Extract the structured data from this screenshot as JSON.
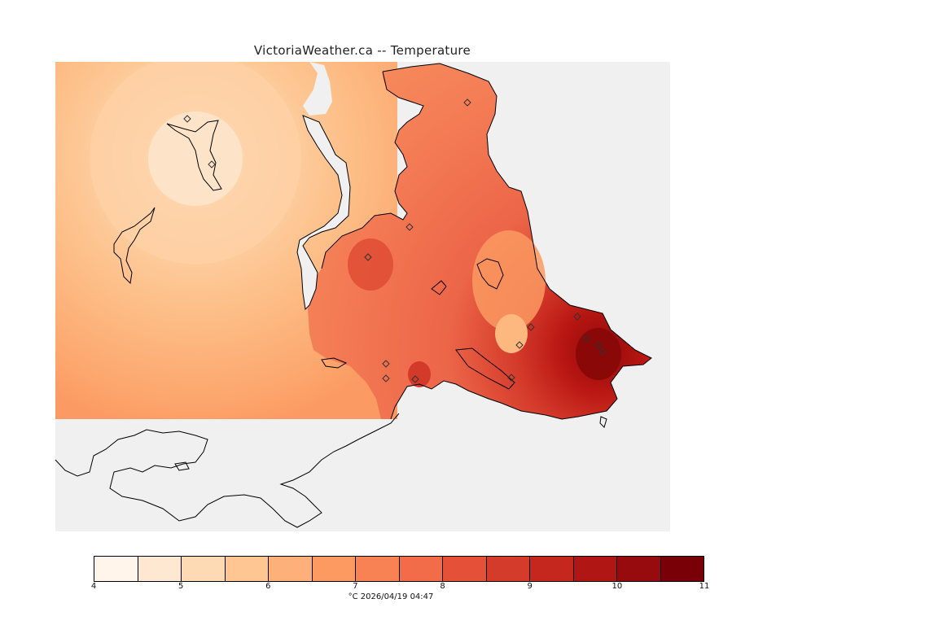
{
  "title": "VictoriaWeather.ca -- Temperature",
  "colorbar": {
    "colors": [
      "#fff5eb",
      "#fee8d2",
      "#fdd9b4",
      "#fdc692",
      "#fdb07a",
      "#fc9a62",
      "#f98255",
      "#f26c49",
      "#e55039",
      "#d53b2b",
      "#c5271e",
      "#b01613",
      "#970a0e",
      "#7a0007"
    ],
    "ticks": [
      "4",
      "5",
      "6",
      "7",
      "8",
      "9",
      "10",
      "11"
    ],
    "min": 4,
    "max": 11
  },
  "caption": "°C  2026/04/19 04:47"
}
